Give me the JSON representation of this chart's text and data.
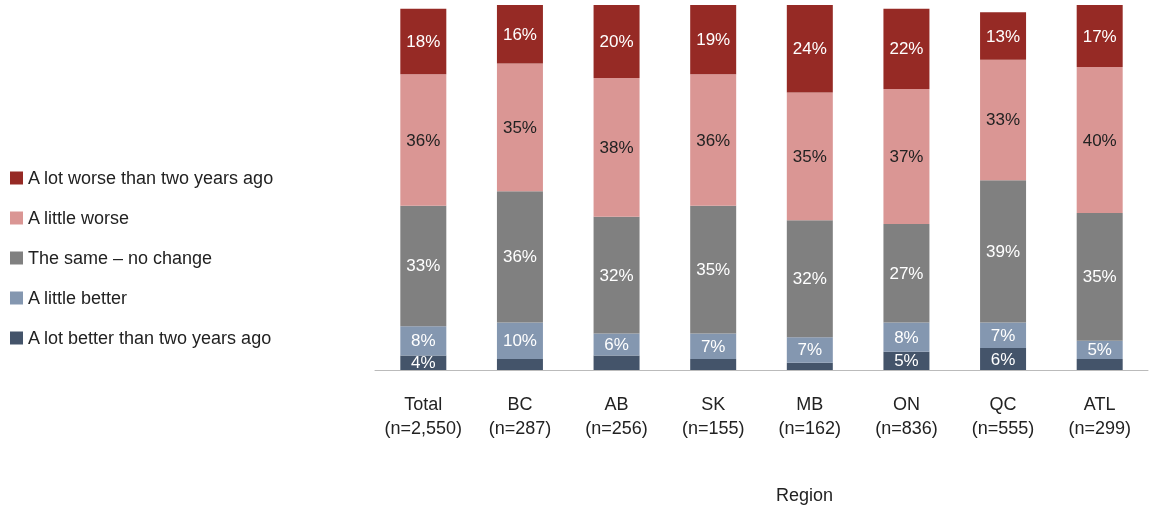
{
  "chart_data": {
    "type": "bar",
    "stacked": true,
    "legend": "left",
    "categories": [
      "Total\n(n=2,550)",
      "BC\n(n=287)",
      "AB\n(n=256)",
      "SK\n(n=155)",
      "MB\n(n=162)",
      "ON\n(n=836)",
      "QC\n(n=555)",
      "ATL\n(n=299)"
    ],
    "annotations": [
      "Region"
    ],
    "series": [
      {
        "name": "A lot better than two years ago",
        "color": "#44546a",
        "values": [
          4,
          3,
          4,
          3,
          2,
          5,
          6,
          3
        ],
        "value_labels": [
          "4%",
          null,
          null,
          null,
          null,
          "5%",
          "6%",
          null
        ]
      },
      {
        "name": "A little better",
        "color": "#8497b0",
        "values": [
          8,
          10,
          6,
          7,
          7,
          8,
          7,
          5
        ],
        "value_labels": [
          "8%",
          "10%",
          "6%",
          "7%",
          "7%",
          "8%",
          "7%",
          "5%"
        ]
      },
      {
        "name": "The same – no change",
        "color": "#808080",
        "values": [
          33,
          36,
          32,
          35,
          32,
          27,
          39,
          35
        ],
        "value_labels": [
          "33%",
          "36%",
          "32%",
          "35%",
          "32%",
          "27%",
          "39%",
          "35%"
        ]
      },
      {
        "name": "A little worse",
        "color": "#da9694",
        "values": [
          36,
          35,
          38,
          36,
          35,
          37,
          33,
          40
        ],
        "value_labels": [
          "36%",
          "35%",
          "38%",
          "36%",
          "35%",
          "37%",
          "33%",
          "40%"
        ]
      },
      {
        "name": "A lot worse than two years ago",
        "color": "#962a25",
        "values": [
          18,
          16,
          20,
          19,
          24,
          22,
          13,
          17
        ],
        "value_labels": [
          "18%",
          "16%",
          "20%",
          "19%",
          "24%",
          "22%",
          "13%",
          "17%"
        ]
      }
    ]
  }
}
